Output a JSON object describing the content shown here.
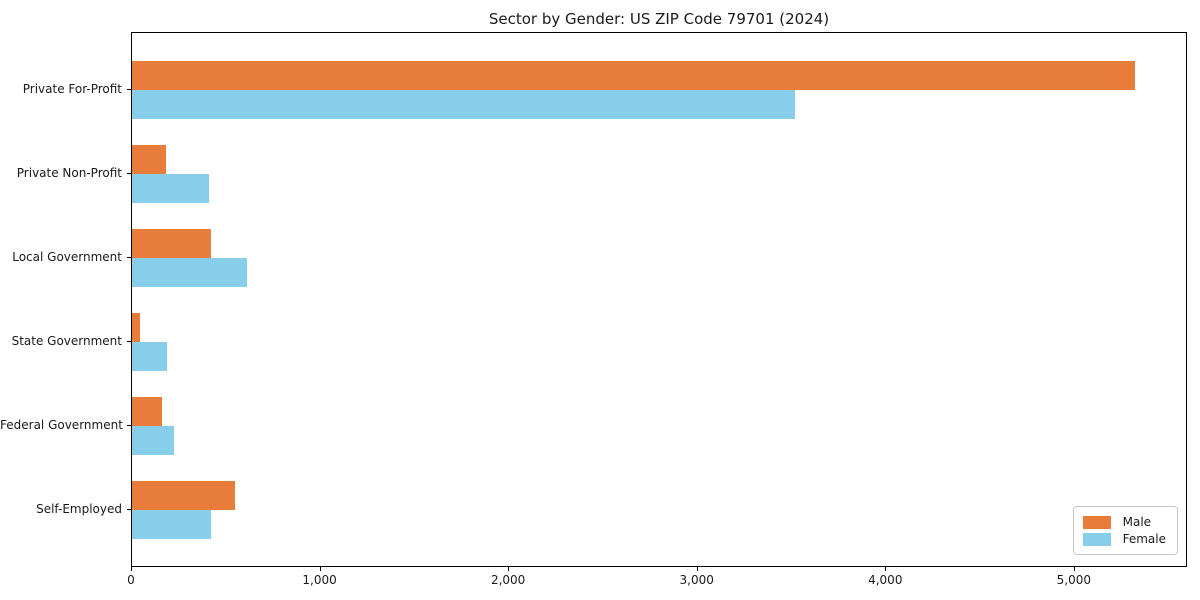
{
  "chart_data": {
    "type": "bar",
    "orientation": "horizontal",
    "title": "Sector by Gender: US ZIP Code 79701 (2024)",
    "categories": [
      "Private For-Profit",
      "Private Non-Profit",
      "Local Government",
      "State Government",
      "Federal Government",
      "Self-Employed"
    ],
    "series": [
      {
        "name": "Male",
        "color": "#e87d3b",
        "values": [
          5330,
          180,
          420,
          45,
          160,
          545
        ]
      },
      {
        "name": "Female",
        "color": "#87ceeb",
        "values": [
          3520,
          410,
          610,
          185,
          225,
          420
        ]
      }
    ],
    "xlabel": "",
    "ylabel": "",
    "xlim": [
      0,
      5600
    ],
    "x_ticks": [
      0,
      1000,
      2000,
      3000,
      4000,
      5000
    ],
    "x_tick_labels": [
      "0",
      "1,000",
      "2,000",
      "3,000",
      "4,000",
      "5,000"
    ],
    "grid": false,
    "legend_position": "lower right",
    "axis_color": "#000000",
    "text_color": "#1a1a1a",
    "legend_border_color": "#c8c8c8",
    "background_color": "#ffffff"
  }
}
